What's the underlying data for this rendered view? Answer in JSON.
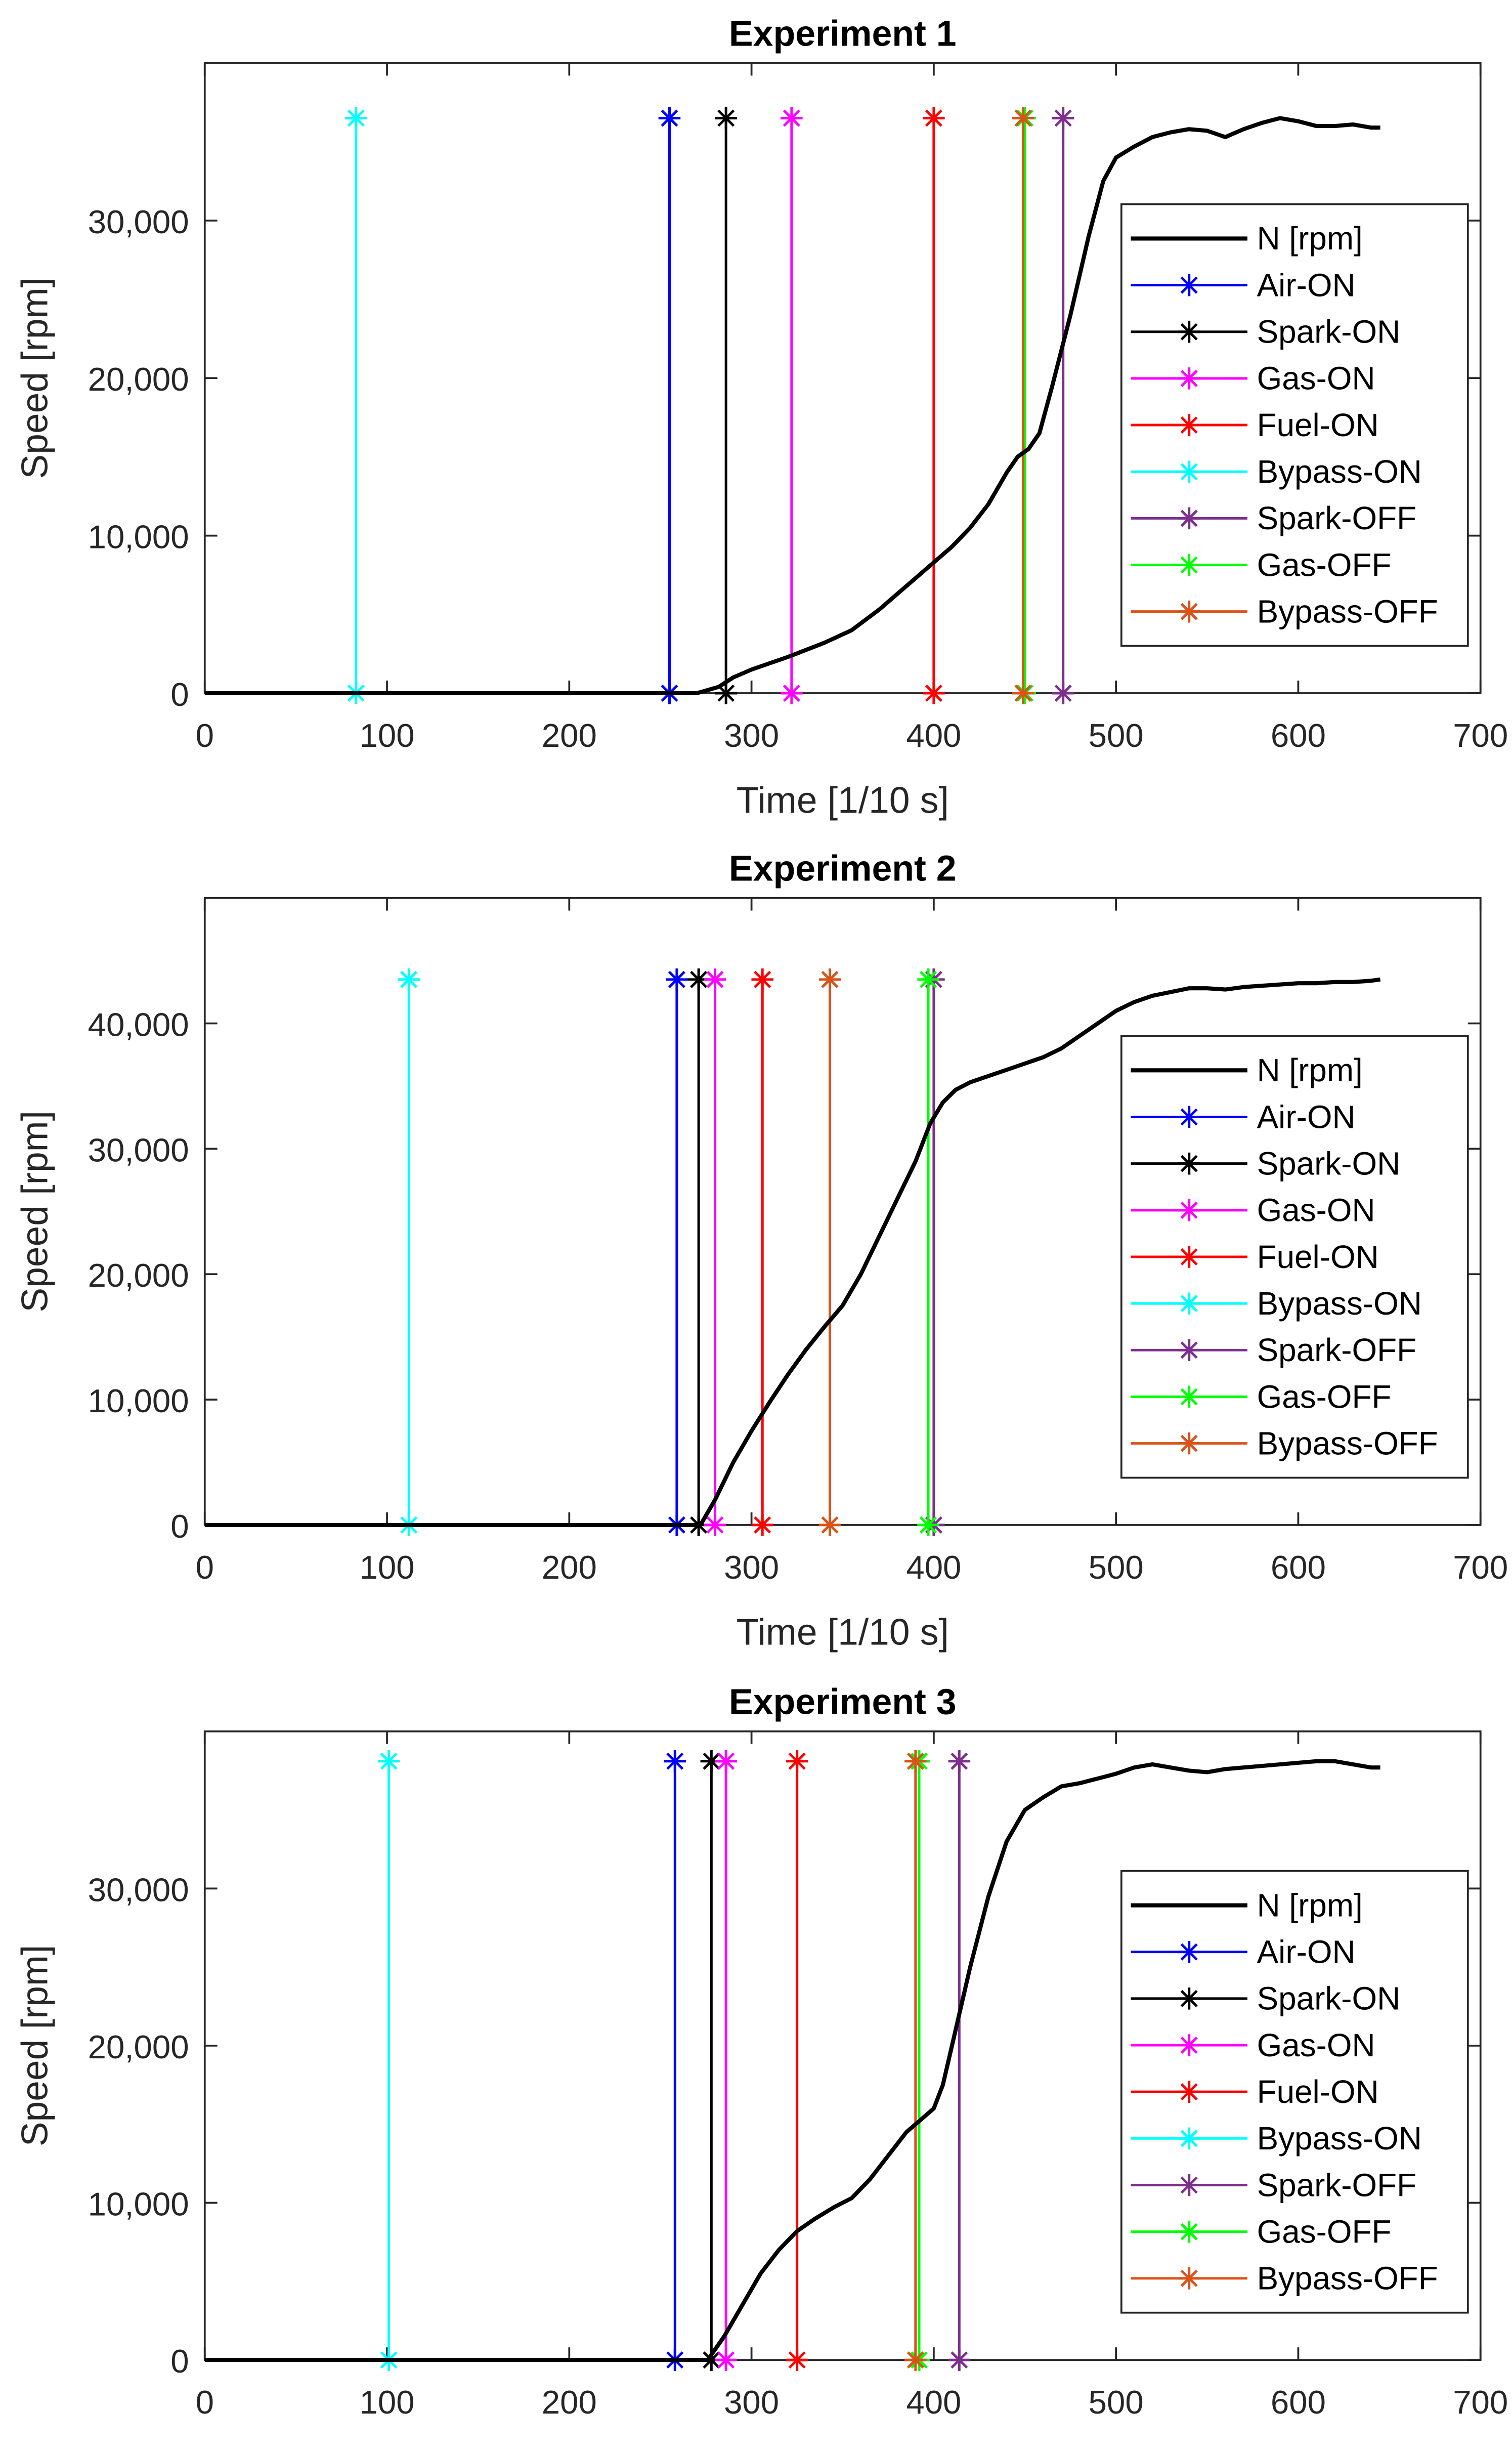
{
  "chart_data": [
    {
      "type": "line",
      "title": "Experiment 1",
      "xlabel": "Time [1/10 s]",
      "ylabel": "Speed [rpm]",
      "xlim": [
        0,
        700
      ],
      "ylim": [
        0,
        40000
      ],
      "xticks": [
        0,
        100,
        200,
        300,
        400,
        500,
        600,
        700
      ],
      "xtick_labels": [
        "0",
        "100",
        "200",
        "300",
        "400",
        "500",
        "600",
        "700"
      ],
      "yticks": [
        0,
        10000,
        20000,
        30000
      ],
      "ytick_labels": [
        "0",
        "10,000",
        "20,000",
        "30,000"
      ],
      "grid": false,
      "legend_position": "right",
      "series": [
        {
          "name": "N [rpm]",
          "color": "#000000",
          "x": [
            0,
            270,
            282,
            290,
            300,
            320,
            340,
            355,
            370,
            380,
            390,
            400,
            410,
            420,
            430,
            440,
            446,
            452,
            458,
            465,
            475,
            485,
            493,
            500,
            510,
            520,
            530,
            540,
            550,
            560,
            570,
            580,
            590,
            600,
            610,
            620,
            630,
            640,
            645
          ],
          "y": [
            0,
            0,
            400,
            1000,
            1500,
            2300,
            3200,
            4000,
            5300,
            6300,
            7300,
            8300,
            9300,
            10500,
            12000,
            14000,
            15000,
            15500,
            16500,
            19500,
            24000,
            29000,
            32500,
            34000,
            34700,
            35300,
            35600,
            35800,
            35700,
            35300,
            35800,
            36200,
            36500,
            36300,
            36000,
            36000,
            36100,
            35900,
            35900
          ]
        }
      ],
      "events": [
        {
          "name": "Air-ON",
          "x": 255,
          "color": "#0000ff"
        },
        {
          "name": "Spark-ON",
          "x": 286,
          "color": "#000000"
        },
        {
          "name": "Gas-ON",
          "x": 322,
          "color": "#ff00ff"
        },
        {
          "name": "Fuel-ON",
          "x": 400,
          "color": "#ff0000"
        },
        {
          "name": "Bypass-ON",
          "x": 83,
          "color": "#00ffff"
        },
        {
          "name": "Spark-OFF",
          "x": 471,
          "color": "#7e2f8e"
        },
        {
          "name": "Gas-OFF",
          "x": 450,
          "color": "#00ff00"
        },
        {
          "name": "Bypass-OFF",
          "x": 449,
          "color": "#d95319"
        }
      ],
      "event_marker_y": 36500
    },
    {
      "type": "line",
      "title": "Experiment 2",
      "xlabel": "Time [1/10 s]",
      "ylabel": "Speed [rpm]",
      "xlim": [
        0,
        700
      ],
      "ylim": [
        0,
        50000
      ],
      "xticks": [
        0,
        100,
        200,
        300,
        400,
        500,
        600,
        700
      ],
      "xtick_labels": [
        "0",
        "100",
        "200",
        "300",
        "400",
        "500",
        "600",
        "700"
      ],
      "yticks": [
        0,
        10000,
        20000,
        30000,
        40000
      ],
      "ytick_labels": [
        "0",
        "10,000",
        "20,000",
        "30,000",
        "40,000"
      ],
      "grid": false,
      "legend_position": "right",
      "series": [
        {
          "name": "N [rpm]",
          "color": "#000000",
          "x": [
            0,
            272,
            280,
            290,
            300,
            310,
            320,
            330,
            340,
            350,
            360,
            370,
            380,
            390,
            398,
            405,
            412,
            420,
            430,
            440,
            450,
            460,
            470,
            480,
            490,
            500,
            510,
            520,
            530,
            540,
            550,
            560,
            570,
            580,
            590,
            600,
            610,
            620,
            630,
            640,
            645
          ],
          "y": [
            0,
            0,
            2000,
            5000,
            7500,
            9800,
            12000,
            14000,
            15800,
            17500,
            20000,
            23000,
            26000,
            29000,
            32000,
            33700,
            34700,
            35300,
            35800,
            36300,
            36800,
            37300,
            38000,
            39000,
            40000,
            41000,
            41700,
            42200,
            42500,
            42800,
            42800,
            42700,
            42900,
            43000,
            43100,
            43200,
            43200,
            43300,
            43300,
            43400,
            43500
          ]
        }
      ],
      "events": [
        {
          "name": "Air-ON",
          "x": 259,
          "color": "#0000ff"
        },
        {
          "name": "Spark-ON",
          "x": 271,
          "color": "#000000"
        },
        {
          "name": "Gas-ON",
          "x": 280,
          "color": "#ff00ff"
        },
        {
          "name": "Fuel-ON",
          "x": 306,
          "color": "#ff0000"
        },
        {
          "name": "Bypass-ON",
          "x": 112,
          "color": "#00ffff"
        },
        {
          "name": "Spark-OFF",
          "x": 400,
          "color": "#7e2f8e"
        },
        {
          "name": "Gas-OFF",
          "x": 397,
          "color": "#00ff00"
        },
        {
          "name": "Bypass-OFF",
          "x": 343,
          "color": "#d95319"
        }
      ],
      "event_marker_y": 43500
    },
    {
      "type": "line",
      "title": "Experiment 3",
      "xlabel": "Time [1/10 s]",
      "ylabel": "Speed [rpm]",
      "xlim": [
        0,
        700
      ],
      "ylim": [
        0,
        40000
      ],
      "xticks": [
        0,
        100,
        200,
        300,
        400,
        500,
        600,
        700
      ],
      "xtick_labels": [
        "0",
        "100",
        "200",
        "300",
        "400",
        "500",
        "600",
        "700"
      ],
      "yticks": [
        0,
        10000,
        20000,
        30000
      ],
      "ytick_labels": [
        "0",
        "10,000",
        "20,000",
        "30,000"
      ],
      "grid": false,
      "legend_position": "right",
      "series": [
        {
          "name": "N [rpm]",
          "color": "#000000",
          "x": [
            0,
            276,
            285,
            295,
            305,
            315,
            325,
            335,
            345,
            355,
            365,
            375,
            385,
            395,
            400,
            405,
            412,
            420,
            430,
            440,
            450,
            460,
            470,
            480,
            490,
            500,
            510,
            520,
            530,
            540,
            550,
            560,
            570,
            580,
            590,
            600,
            610,
            620,
            630,
            640,
            645
          ],
          "y": [
            0,
            0,
            1500,
            3500,
            5500,
            7000,
            8200,
            9000,
            9700,
            10300,
            11500,
            13000,
            14500,
            15500,
            16000,
            17500,
            21000,
            25000,
            29500,
            33000,
            35000,
            35800,
            36500,
            36700,
            37000,
            37300,
            37700,
            37900,
            37700,
            37500,
            37400,
            37600,
            37700,
            37800,
            37900,
            38000,
            38100,
            38100,
            37900,
            37700,
            37700
          ]
        }
      ],
      "events": [
        {
          "name": "Air-ON",
          "x": 258,
          "color": "#0000ff"
        },
        {
          "name": "Spark-ON",
          "x": 278,
          "color": "#000000"
        },
        {
          "name": "Gas-ON",
          "x": 286,
          "color": "#ff00ff"
        },
        {
          "name": "Fuel-ON",
          "x": 325,
          "color": "#ff0000"
        },
        {
          "name": "Bypass-ON",
          "x": 101,
          "color": "#00ffff"
        },
        {
          "name": "Spark-OFF",
          "x": 414,
          "color": "#7e2f8e"
        },
        {
          "name": "Gas-OFF",
          "x": 392,
          "color": "#00ff00"
        },
        {
          "name": "Bypass-OFF",
          "x": 390,
          "color": "#d95319"
        }
      ],
      "event_marker_y": 38100
    }
  ]
}
